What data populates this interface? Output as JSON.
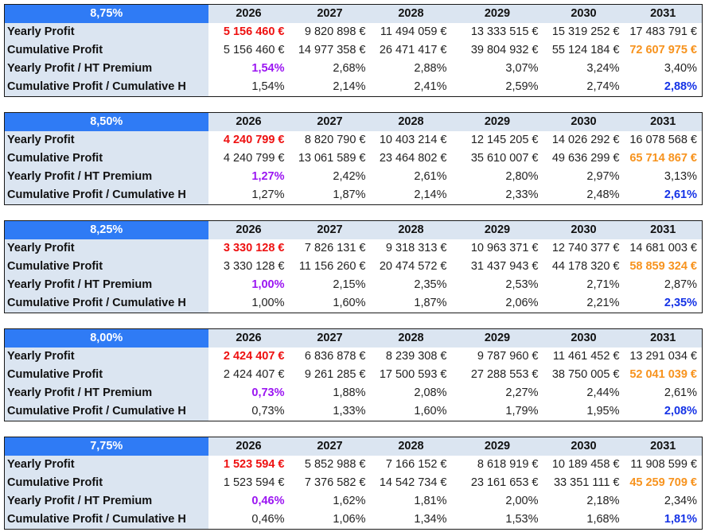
{
  "years": [
    "2026",
    "2027",
    "2028",
    "2029",
    "2030",
    "2031"
  ],
  "row_labels": {
    "yearly_profit": "Yearly Profit",
    "cumulative_profit": "Cumulative Profit",
    "yearly_ratio": "Yearly Profit / HT Premium",
    "cumulative_ratio": "Cumulative Profit / Cumulative H"
  },
  "colors": {
    "header_blue": "#2f7bf5",
    "label_bg": "#dbe5f1",
    "first_year_profit": "#ee1111",
    "first_year_ratio": "#9b16f2",
    "final_cumulative_profit": "#f7931e",
    "final_cumulative_ratio": "#1432e6"
  },
  "scenarios": [
    {
      "rate": "8,75%",
      "yearly_profit": [
        "5 156 460 €",
        "9 820 898 €",
        "11 494 059 €",
        "13 333 515 €",
        "15 319 252 €",
        "17 483 791 €"
      ],
      "cumulative_profit": [
        "5 156 460 €",
        "14 977 358 €",
        "26 471 417 €",
        "39 804 932 €",
        "55 124 184 €",
        "72 607 975 €"
      ],
      "yearly_ratio": [
        "1,54%",
        "2,68%",
        "2,88%",
        "3,07%",
        "3,24%",
        "3,40%"
      ],
      "cumulative_ratio": [
        "1,54%",
        "2,14%",
        "2,41%",
        "2,59%",
        "2,74%",
        "2,88%"
      ]
    },
    {
      "rate": "8,50%",
      "yearly_profit": [
        "4 240 799 €",
        "8 820 790 €",
        "10 403 214 €",
        "12 145 205 €",
        "14 026 292 €",
        "16 078 568 €"
      ],
      "cumulative_profit": [
        "4 240 799 €",
        "13 061 589 €",
        "23 464 802 €",
        "35 610 007 €",
        "49 636 299 €",
        "65 714 867 €"
      ],
      "yearly_ratio": [
        "1,27%",
        "2,42%",
        "2,61%",
        "2,80%",
        "2,97%",
        "3,13%"
      ],
      "cumulative_ratio": [
        "1,27%",
        "1,87%",
        "2,14%",
        "2,33%",
        "2,48%",
        "2,61%"
      ]
    },
    {
      "rate": "8,25%",
      "yearly_profit": [
        "3 330 128 €",
        "7 826 131 €",
        "9 318 313 €",
        "10 963 371 €",
        "12 740 377 €",
        "14 681 003 €"
      ],
      "cumulative_profit": [
        "3 330 128 €",
        "11 156 260 €",
        "20 474 572 €",
        "31 437 943 €",
        "44 178 320 €",
        "58 859 324 €"
      ],
      "yearly_ratio": [
        "1,00%",
        "2,15%",
        "2,35%",
        "2,53%",
        "2,71%",
        "2,87%"
      ],
      "cumulative_ratio": [
        "1,00%",
        "1,60%",
        "1,87%",
        "2,06%",
        "2,21%",
        "2,35%"
      ]
    },
    {
      "rate": "8,00%",
      "yearly_profit": [
        "2 424 407 €",
        "6 836 878 €",
        "8 239 308 €",
        "9 787 960 €",
        "11 461 452 €",
        "13 291 034 €"
      ],
      "cumulative_profit": [
        "2 424 407 €",
        "9 261 285 €",
        "17 500 593 €",
        "27 288 553 €",
        "38 750 005 €",
        "52 041 039 €"
      ],
      "yearly_ratio": [
        "0,73%",
        "1,88%",
        "2,08%",
        "2,27%",
        "2,44%",
        "2,61%"
      ],
      "cumulative_ratio": [
        "0,73%",
        "1,33%",
        "1,60%",
        "1,79%",
        "1,95%",
        "2,08%"
      ]
    },
    {
      "rate": "7,75%",
      "yearly_profit": [
        "1 523 594 €",
        "5 852 988 €",
        "7 166 152 €",
        "8 618 919 €",
        "10 189 458 €",
        "11 908 599 €"
      ],
      "cumulative_profit": [
        "1 523 594 €",
        "7 376 582 €",
        "14 542 734 €",
        "23 161 653 €",
        "33 351 111 €",
        "45 259 709 €"
      ],
      "yearly_ratio": [
        "0,46%",
        "1,62%",
        "1,81%",
        "2,00%",
        "2,18%",
        "2,34%"
      ],
      "cumulative_ratio": [
        "0,46%",
        "1,06%",
        "1,34%",
        "1,53%",
        "1,68%",
        "1,81%"
      ]
    }
  ]
}
